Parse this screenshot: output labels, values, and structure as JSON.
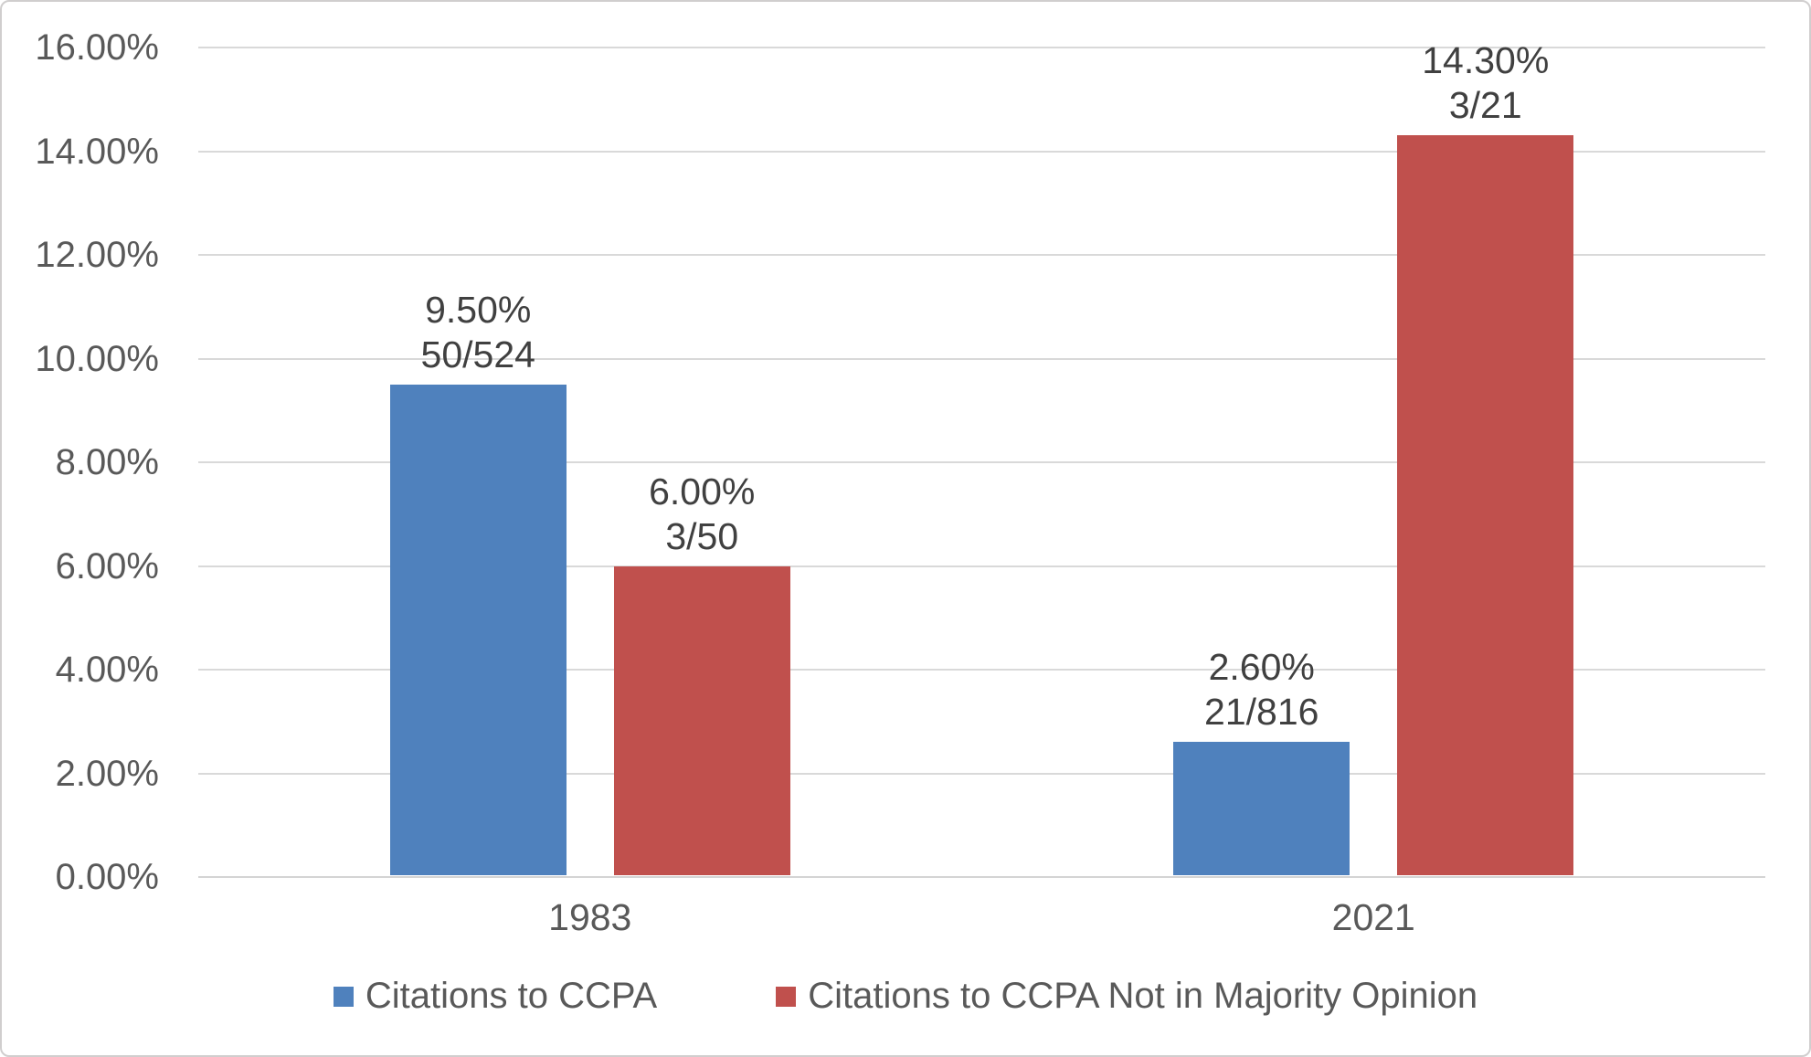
{
  "chart_data": {
    "type": "bar",
    "title": "",
    "xlabel": "",
    "ylabel": "",
    "categories": [
      "1983",
      "2021"
    ],
    "series": [
      {
        "name": "Citations to CCPA",
        "color": "#4F81BD",
        "values": [
          9.5,
          2.6
        ],
        "data_labels": [
          [
            "9.50%",
            "50/524"
          ],
          [
            "2.60%",
            "21/816"
          ]
        ]
      },
      {
        "name": "Citations to CCPA Not in Majority Opinion",
        "color": "#C0504D",
        "values": [
          6.0,
          14.3
        ],
        "data_labels": [
          [
            "6.00%",
            "3/50"
          ],
          [
            "14.30%",
            "3/21"
          ]
        ]
      }
    ],
    "ylim": [
      0,
      16
    ],
    "ytick_step": 2,
    "ytick_labels": [
      "0.00%",
      "2.00%",
      "4.00%",
      "6.00%",
      "8.00%",
      "10.00%",
      "12.00%",
      "14.00%",
      "16.00%"
    ],
    "grid": true,
    "legend_position": "bottom",
    "colors": {
      "gridline": "#D9D9D9",
      "axis_text": "#595959",
      "data_label_text": "#404040",
      "frame_border": "#D0CECE"
    }
  }
}
